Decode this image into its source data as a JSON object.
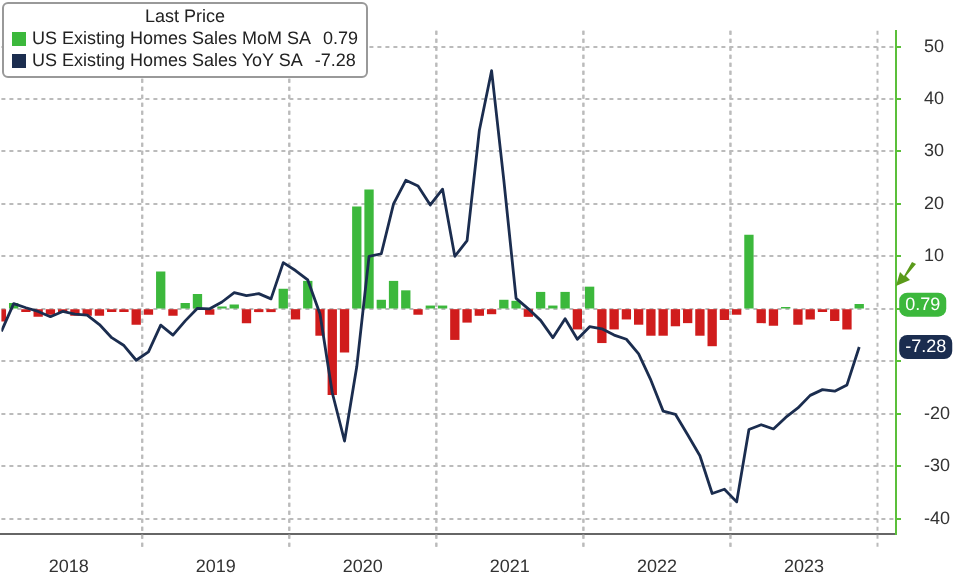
{
  "chart_data": {
    "type": "bar",
    "legend_title": "Last Price",
    "x": [
      "2018-01",
      "2018-02",
      "2018-03",
      "2018-04",
      "2018-05",
      "2018-06",
      "2018-07",
      "2018-08",
      "2018-09",
      "2018-10",
      "2018-11",
      "2018-12",
      "2019-01",
      "2019-02",
      "2019-03",
      "2019-04",
      "2019-05",
      "2019-06",
      "2019-07",
      "2019-08",
      "2019-09",
      "2019-10",
      "2019-11",
      "2019-12",
      "2020-01",
      "2020-02",
      "2020-03",
      "2020-04",
      "2020-05",
      "2020-06",
      "2020-07",
      "2020-08",
      "2020-09",
      "2020-10",
      "2020-11",
      "2020-12",
      "2021-01",
      "2021-02",
      "2021-03",
      "2021-04",
      "2021-05",
      "2021-06",
      "2021-07",
      "2021-08",
      "2021-09",
      "2021-10",
      "2021-11",
      "2021-12",
      "2022-01",
      "2022-02",
      "2022-03",
      "2022-04",
      "2022-05",
      "2022-06",
      "2022-07",
      "2022-08",
      "2022-09",
      "2022-10",
      "2022-11",
      "2022-12",
      "2023-01",
      "2023-02",
      "2023-03",
      "2023-04",
      "2023-05",
      "2023-06",
      "2023-07",
      "2023-08",
      "2023-09",
      "2023-10",
      "2023-11"
    ],
    "series": [
      {
        "name": "US Existing Homes Sales MoM SA",
        "color": "#3cb83c",
        "colors": [
          "#d01c1c",
          "#3cb83c",
          "#d01c1c",
          "#d01c1c",
          "#d01c1c",
          "#d01c1c",
          "#d01c1c",
          "#d01c1c",
          "#d01c1c",
          "#d01c1c",
          "#d01c1c",
          "#d01c1c",
          "#d01c1c",
          "#3cb83c",
          "#d01c1c",
          "#3cb83c",
          "#3cb83c",
          "#d01c1c",
          "#3cb83c",
          "#3cb83c",
          "#d01c1c",
          "#d01c1c",
          "#d01c1c",
          "#3cb83c",
          "#d01c1c",
          "#3cb83c",
          "#d01c1c",
          "#d01c1c",
          "#d01c1c",
          "#3cb83c",
          "#3cb83c",
          "#3cb83c",
          "#3cb83c",
          "#3cb83c",
          "#d01c1c",
          "#3cb83c",
          "#3cb83c",
          "#d01c1c",
          "#d01c1c",
          "#d01c1c",
          "#d01c1c",
          "#3cb83c",
          "#3cb83c",
          "#d01c1c",
          "#3cb83c",
          "#3cb83c",
          "#3cb83c",
          "#d01c1c",
          "#3cb83c",
          "#d01c1c",
          "#d01c1c",
          "#d01c1c",
          "#d01c1c",
          "#d01c1c",
          "#d01c1c",
          "#d01c1c",
          "#d01c1c",
          "#d01c1c",
          "#d01c1c",
          "#d01c1c",
          "#d01c1c",
          "#3cb83c",
          "#d01c1c",
          "#d01c1c",
          "#3cb83c",
          "#d01c1c",
          "#d01c1c",
          "#d01c1c",
          "#d01c1c",
          "#d01c1c",
          "#3cb83c"
        ],
        "values": [
          -2.3,
          1,
          -0.5,
          -1.4,
          -1,
          -0.5,
          -1.2,
          -1.2,
          -1.2,
          -0.5,
          -0.5,
          -2.9,
          -1,
          7,
          -1.2,
          1,
          2.7,
          -1,
          0.3,
          0.7,
          -2.6,
          -0.5,
          -0.5,
          3.7,
          -1.9,
          5.2,
          -5,
          -16.3,
          -8.2,
          19.4,
          22.6,
          1.6,
          5.2,
          3.4,
          -1,
          0.5,
          0.5,
          -5.8,
          -2.5,
          -1.2,
          -0.9,
          1.6,
          1.4,
          -1.4,
          3.1,
          0.5,
          3.1,
          -3.8,
          4.1,
          -6.4,
          -3.8,
          -1.9,
          -2.9,
          -5,
          -5,
          -3.2,
          -2.6,
          -5,
          -7,
          -2,
          -1,
          14,
          -2.6,
          -3.1,
          0.2,
          -2.9,
          -1.9,
          -0.5,
          -2.2,
          -3.8,
          0.79
        ]
      },
      {
        "name": "US Existing Homes Sales YoY SA",
        "type": "line",
        "color": "#1b2d4f",
        "values": [
          -4.3,
          1,
          0.2,
          -0.5,
          -1.5,
          -0.5,
          -1,
          -1.2,
          -3,
          -5.5,
          -7,
          -9.8,
          -8.2,
          -3.1,
          -5,
          -2.3,
          0.1,
          0,
          1.3,
          3.1,
          2.5,
          2.9,
          1.9,
          8.8,
          7.3,
          5.5,
          -1,
          -16,
          -25.2,
          -11,
          10,
          10.5,
          20,
          24.5,
          23.4,
          19.8,
          22.8,
          10,
          13,
          34,
          45.4,
          24.5,
          2,
          0,
          -2.2,
          -5.5,
          -1.9,
          -5.8,
          -3.4,
          -3.8,
          -5,
          -5.8,
          -8.6,
          -13.6,
          -19.5,
          -20.1,
          -24,
          -28,
          -35.2,
          -34.4,
          -36.8,
          -23,
          -22.1,
          -22.9,
          -20.7,
          -18.9,
          -16.5,
          -15.4,
          -15.7,
          -14.5,
          -7.28
        ]
      }
    ],
    "xlim": [
      "2018-01",
      "2024-02"
    ],
    "xticks": [
      {
        "value": "2018-06-16",
        "label": "2018"
      },
      {
        "value": "2019-06-16",
        "label": "2019"
      },
      {
        "value": "2020-06-16",
        "label": "2020"
      },
      {
        "value": "2021-06-16",
        "label": "2021"
      },
      {
        "value": "2022-06-16",
        "label": "2022"
      },
      {
        "value": "2023-06-16",
        "label": "2023"
      }
    ],
    "ylim": [
      -43,
      53
    ],
    "yticks": [
      -40,
      -30,
      -20,
      {
        "value": -10,
        "label": null
      },
      {
        "value": 0,
        "label": null
      },
      10,
      20,
      30,
      40,
      50
    ],
    "annotations": [
      {
        "text": "0.79",
        "x": "2023-11",
        "y": 0.79
      },
      {
        "text": "-7.28",
        "x": "2023-11",
        "y": -7.28
      }
    ],
    "grid": true,
    "legend": "top left"
  }
}
